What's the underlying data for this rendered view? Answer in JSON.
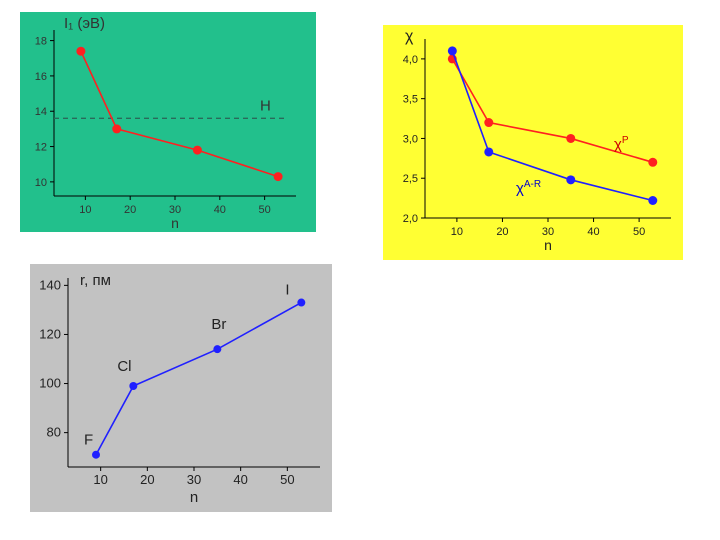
{
  "colors": {
    "panel1_bg": "#22c08c",
    "panel2_bg": "#ffff33",
    "panel3_bg": "#c2c2c2",
    "red": "#ff2020",
    "blue": "#2020ff",
    "axis": "#000000",
    "label_dark": "#333333",
    "chi_red_label": "#cc0000",
    "chi_blue_label": "#0000cc"
  },
  "chart_data": [
    {
      "type": "line",
      "ylabel": "I₁ (эВ)",
      "xlabel": "n",
      "x_ticks": [
        10,
        20,
        30,
        40,
        50
      ],
      "y_ticks": [
        10,
        12,
        14,
        16,
        18
      ],
      "xlim": [
        3,
        57
      ],
      "ylim": [
        9.2,
        18.6
      ],
      "grid": false,
      "series": [
        {
          "x": [
            9,
            17,
            35,
            53
          ],
          "y": [
            17.4,
            13.0,
            11.8,
            10.3
          ],
          "color": "red"
        }
      ],
      "reference_line": {
        "label": "H",
        "y": 13.6,
        "style": "dashed"
      }
    },
    {
      "type": "line",
      "ylabel": "χ",
      "xlabel": "n",
      "x_ticks": [
        10,
        20,
        30,
        40,
        50
      ],
      "y_ticks": [
        "2,0",
        "2,5",
        "3,0",
        "3,5",
        "4,0"
      ],
      "y_tick_values": [
        2.0,
        2.5,
        3.0,
        3.5,
        4.0
      ],
      "xlim": [
        3,
        57
      ],
      "ylim": [
        2.0,
        4.25
      ],
      "grid": false,
      "series": [
        {
          "name": "χP",
          "name_main": "χ",
          "name_sup": "P",
          "x": [
            9,
            17,
            35,
            53
          ],
          "y": [
            4.0,
            3.2,
            3.0,
            2.7
          ],
          "color": "red"
        },
        {
          "name": "χA-R",
          "name_main": "χ",
          "name_sup": "A-R",
          "x": [
            9,
            17,
            35,
            53
          ],
          "y": [
            4.1,
            2.83,
            2.48,
            2.22
          ],
          "color": "blue"
        }
      ]
    },
    {
      "type": "line",
      "ylabel": "r, пм",
      "xlabel": "n",
      "x_ticks": [
        10,
        20,
        30,
        40,
        50
      ],
      "y_ticks": [
        80,
        100,
        120,
        140
      ],
      "xlim": [
        3,
        57
      ],
      "ylim": [
        66,
        143
      ],
      "grid": false,
      "series": [
        {
          "x": [
            9,
            17,
            35,
            53
          ],
          "y": [
            71,
            99,
            114,
            133
          ],
          "color": "blue",
          "point_labels": [
            "F",
            "Cl",
            "Br",
            "I"
          ]
        }
      ]
    }
  ]
}
